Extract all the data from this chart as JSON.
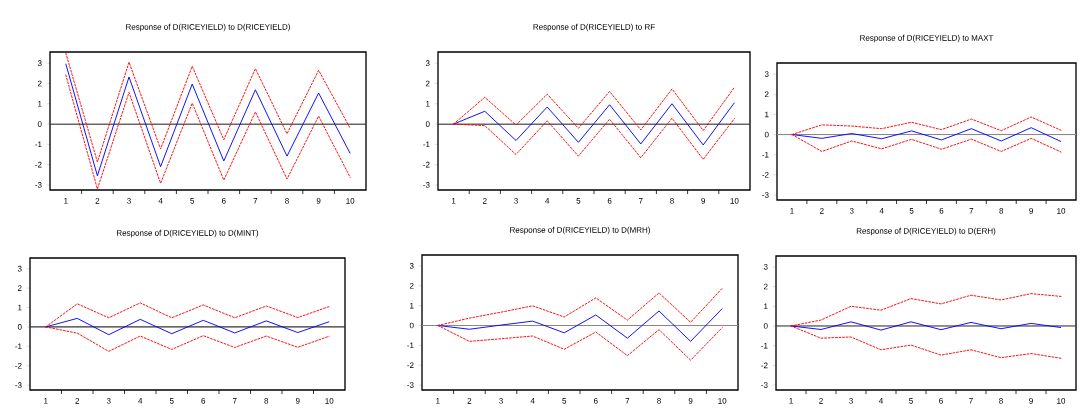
{
  "chart_data": [
    {
      "type": "line",
      "title": "Response of D(RICEYIELD) to D(RICEYIELD)",
      "x": [
        1,
        2,
        3,
        4,
        5,
        6,
        7,
        8,
        9,
        10
      ],
      "xlim": [
        0.5,
        10.5
      ],
      "xticks": [
        1,
        2,
        3,
        4,
        5,
        6,
        7,
        8,
        9,
        10
      ],
      "ylim": [
        -3.25,
        3.55
      ],
      "yticks": [
        -3,
        -2,
        -1,
        0,
        1,
        2,
        3
      ],
      "ref_lines": [
        {
          "axis": "y",
          "value": 0,
          "color": "#333333"
        }
      ],
      "series": [
        {
          "color": "#0000ff",
          "line_style": "solid",
          "values": [
            2.97,
            -2.55,
            2.32,
            -2.1,
            1.97,
            -1.82,
            1.69,
            -1.58,
            1.53,
            -1.45
          ]
        },
        {
          "color": "#ff0000",
          "line_style": "dashed",
          "values": [
            3.5,
            -1.87,
            3.05,
            -1.23,
            2.85,
            -0.77,
            2.73,
            -0.48,
            2.65,
            -0.21
          ]
        },
        {
          "color": "#ff0000",
          "line_style": "dashed",
          "values": [
            2.42,
            -3.2,
            1.56,
            -2.92,
            1.03,
            -2.76,
            0.6,
            -2.71,
            0.39,
            -2.63
          ]
        }
      ]
    },
    {
      "type": "line",
      "title": "Response of D(RICEYIELD) to RF",
      "x": [
        1,
        2,
        3,
        4,
        5,
        6,
        7,
        8,
        9,
        10
      ],
      "xlim": [
        0.5,
        10.5
      ],
      "xticks": [
        1,
        2,
        3,
        4,
        5,
        6,
        7,
        8,
        9,
        10
      ],
      "ylim": [
        -3.25,
        3.55
      ],
      "yticks": [
        -3,
        -2,
        -1,
        0,
        1,
        2,
        3
      ],
      "ref_lines": [
        {
          "axis": "y",
          "value": 0,
          "color": "#333333"
        }
      ],
      "series": [
        {
          "color": "#0000ff",
          "line_style": "solid",
          "values": [
            0,
            0.63,
            -0.81,
            0.84,
            -0.9,
            0.95,
            -0.98,
            1.0,
            -1.03,
            1.05
          ]
        },
        {
          "color": "#ff0000",
          "line_style": "dashed",
          "values": [
            0,
            1.32,
            -0.05,
            1.47,
            -0.21,
            1.61,
            -0.29,
            1.73,
            -0.32,
            1.81
          ]
        },
        {
          "color": "#ff0000",
          "line_style": "dashed",
          "values": [
            0,
            -0.08,
            -1.5,
            0.16,
            -1.58,
            0.24,
            -1.66,
            0.29,
            -1.74,
            0.27
          ]
        }
      ]
    },
    {
      "type": "line",
      "title": "Response of D(RICEYIELD) to MAXT",
      "x": [
        1,
        2,
        3,
        4,
        5,
        6,
        7,
        8,
        9,
        10
      ],
      "xlim": [
        0.5,
        10.5
      ],
      "xticks": [
        1,
        2,
        3,
        4,
        5,
        6,
        7,
        8,
        9,
        10
      ],
      "ylim": [
        -3.25,
        3.55
      ],
      "yticks": [
        -3,
        -2,
        -1,
        0,
        1,
        2,
        3
      ],
      "ref_lines": [
        {
          "axis": "y",
          "value": 0,
          "color": "#888888"
        }
      ],
      "series": [
        {
          "color": "#0000ff",
          "line_style": "solid",
          "values": [
            0,
            -0.19,
            0.05,
            -0.21,
            0.18,
            -0.27,
            0.29,
            -0.32,
            0.34,
            -0.35
          ]
        },
        {
          "color": "#ff0000",
          "line_style": "dashed",
          "values": [
            0,
            0.48,
            0.42,
            0.29,
            0.61,
            0.24,
            0.77,
            0.19,
            0.87,
            0.21
          ]
        },
        {
          "color": "#ff0000",
          "line_style": "dashed",
          "values": [
            0,
            -0.84,
            -0.32,
            -0.71,
            -0.24,
            -0.73,
            -0.23,
            -0.84,
            -0.19,
            -0.87
          ]
        }
      ]
    },
    {
      "type": "line",
      "title": "Response of D(RICEYIELD) to D(MINT)",
      "x": [
        1,
        2,
        3,
        4,
        5,
        6,
        7,
        8,
        9,
        10
      ],
      "xlim": [
        0.5,
        10.5
      ],
      "xticks": [
        1,
        2,
        3,
        4,
        5,
        6,
        7,
        8,
        9,
        10
      ],
      "ylim": [
        -3.25,
        3.55
      ],
      "yticks": [
        -3,
        -2,
        -1,
        0,
        1,
        2,
        3
      ],
      "ref_lines": [
        {
          "axis": "y",
          "value": 0,
          "color": "#333333"
        }
      ],
      "series": [
        {
          "color": "#0000ff",
          "line_style": "solid",
          "values": [
            0,
            0.44,
            -0.4,
            0.39,
            -0.35,
            0.34,
            -0.31,
            0.31,
            -0.29,
            0.27
          ]
        },
        {
          "color": "#ff0000",
          "line_style": "dashed",
          "values": [
            0,
            1.19,
            0.47,
            1.24,
            0.47,
            1.13,
            0.47,
            1.08,
            0.48,
            1.05
          ]
        },
        {
          "color": "#ff0000",
          "line_style": "dashed",
          "values": [
            0,
            -0.32,
            -1.26,
            -0.47,
            -1.16,
            -0.45,
            -1.06,
            -0.47,
            -1.05,
            -0.48
          ]
        }
      ]
    },
    {
      "type": "line",
      "title": "Response of D(RICEYIELD) to D(MRH)",
      "x": [
        1,
        2,
        3,
        4,
        5,
        6,
        7,
        8,
        9,
        10
      ],
      "xlim": [
        0.5,
        10.5
      ],
      "xticks": [
        1,
        2,
        3,
        4,
        5,
        6,
        7,
        8,
        9,
        10
      ],
      "ylim": [
        -3.25,
        3.55
      ],
      "yticks": [
        -3,
        -2,
        -1,
        0,
        1,
        2,
        3
      ],
      "ref_lines": [
        {
          "axis": "y",
          "value": 0,
          "color": "#888888"
        }
      ],
      "series": [
        {
          "color": "#0000ff",
          "line_style": "solid",
          "values": [
            0,
            -0.19,
            0.02,
            0.22,
            -0.37,
            0.53,
            -0.64,
            0.73,
            -0.8,
            0.85
          ]
        },
        {
          "color": "#ff0000",
          "line_style": "dashed",
          "values": [
            0,
            0.37,
            0.67,
            0.99,
            0.43,
            1.39,
            0.27,
            1.64,
            0.16,
            1.87
          ]
        },
        {
          "color": "#ff0000",
          "line_style": "dashed",
          "values": [
            0,
            -0.8,
            -0.67,
            -0.53,
            -1.2,
            -0.33,
            -1.52,
            -0.21,
            -1.75,
            -0.11
          ]
        }
      ]
    },
    {
      "type": "line",
      "title": "Response of D(RICEYIELD) to D(ERH)",
      "x": [
        1,
        2,
        3,
        4,
        5,
        6,
        7,
        8,
        9,
        10
      ],
      "xlim": [
        0.5,
        10.5
      ],
      "xticks": [
        1,
        2,
        3,
        4,
        5,
        6,
        7,
        8,
        9,
        10
      ],
      "ylim": [
        -3.25,
        3.55
      ],
      "yticks": [
        -3,
        -2,
        -1,
        0,
        1,
        2,
        3
      ],
      "ref_lines": [
        {
          "axis": "y",
          "value": 0,
          "color": "#333333"
        }
      ],
      "series": [
        {
          "color": "#0000ff",
          "line_style": "solid",
          "values": [
            0,
            -0.18,
            0.21,
            -0.21,
            0.21,
            -0.19,
            0.18,
            -0.14,
            0.13,
            -0.08
          ]
        },
        {
          "color": "#ff0000",
          "line_style": "dashed",
          "values": [
            0,
            0.3,
            1.0,
            0.8,
            1.39,
            1.12,
            1.56,
            1.32,
            1.64,
            1.5
          ]
        },
        {
          "color": "#ff0000",
          "line_style": "dashed",
          "values": [
            0,
            -0.62,
            -0.56,
            -1.21,
            -0.97,
            -1.48,
            -1.21,
            -1.61,
            -1.4,
            -1.64
          ]
        }
      ]
    }
  ]
}
